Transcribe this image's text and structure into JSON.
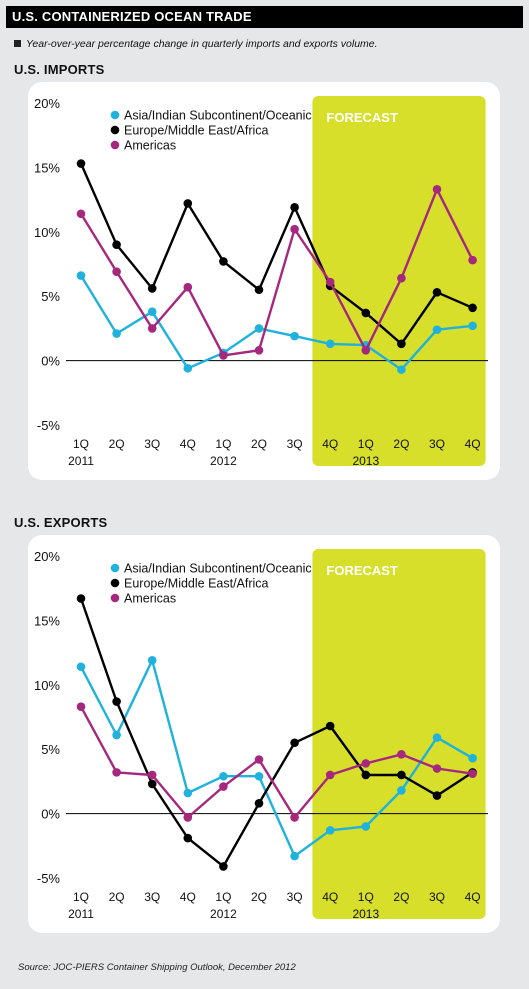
{
  "header": {
    "title": "U.S. CONTAINERIZED OCEAN TRADE",
    "subtitle": "Year-over-year percentage change in quarterly imports and exports volume."
  },
  "source": "Source: JOC-PIERS Container Shipping Outlook, December 2012",
  "colors": {
    "asia": "#1fb2dc",
    "europe": "#000000",
    "americas": "#a5287e",
    "forecast_band": "#d7df2b",
    "forecast_text": "#ffffff"
  },
  "chart_data": [
    {
      "type": "line",
      "title": "U.S. IMPORTS",
      "forecast_label": "FORECAST",
      "forecast_start_index": 7,
      "x_tick_labels": [
        "1Q",
        "2Q",
        "3Q",
        "4Q",
        "1Q",
        "2Q",
        "3Q",
        "4Q",
        "1Q",
        "2Q",
        "3Q",
        "4Q"
      ],
      "x_year_labels": [
        {
          "index": 0,
          "label": "2011"
        },
        {
          "index": 4,
          "label": "2012"
        },
        {
          "index": 8,
          "label": "2013"
        }
      ],
      "y_ticks": [
        20,
        15,
        10,
        5,
        0,
        -5
      ],
      "y_tick_labels": [
        "20%",
        "15%",
        "10%",
        "5%",
        "0%",
        "-5%"
      ],
      "ylim": [
        -5,
        20
      ],
      "legend": "top-left",
      "series": [
        {
          "name": "Asia/Indian Subcontinent/Oceanic",
          "color_key": "asia",
          "values": [
            6.6,
            2.1,
            3.8,
            -0.6,
            0.6,
            2.5,
            1.9,
            1.3,
            1.2,
            -0.7,
            2.4,
            2.7
          ]
        },
        {
          "name": "Europe/Middle East/Africa",
          "color_key": "europe",
          "values": [
            15.3,
            9.0,
            5.6,
            12.2,
            7.7,
            5.5,
            11.9,
            5.8,
            3.7,
            1.3,
            5.3,
            4.1
          ]
        },
        {
          "name": "Americas",
          "color_key": "americas",
          "values": [
            11.4,
            6.9,
            2.5,
            5.7,
            0.4,
            0.8,
            10.2,
            6.1,
            0.8,
            6.4,
            13.3,
            7.8
          ]
        }
      ]
    },
    {
      "type": "line",
      "title": "U.S. EXPORTS",
      "forecast_label": "FORECAST",
      "forecast_start_index": 7,
      "x_tick_labels": [
        "1Q",
        "2Q",
        "3Q",
        "4Q",
        "1Q",
        "2Q",
        "3Q",
        "4Q",
        "1Q",
        "2Q",
        "3Q",
        "4Q"
      ],
      "x_year_labels": [
        {
          "index": 0,
          "label": "2011"
        },
        {
          "index": 4,
          "label": "2012"
        },
        {
          "index": 8,
          "label": "2013"
        }
      ],
      "y_ticks": [
        20,
        15,
        10,
        5,
        0,
        -5
      ],
      "y_tick_labels": [
        "20%",
        "15%",
        "10%",
        "5%",
        "0%",
        "-5%"
      ],
      "ylim": [
        -5,
        20
      ],
      "legend": "top-left",
      "series": [
        {
          "name": "Asia/Indian Subcontinent/Oceanic",
          "color_key": "asia",
          "values": [
            11.4,
            6.1,
            11.9,
            1.6,
            2.9,
            2.9,
            -3.3,
            -1.3,
            -1.0,
            1.8,
            5.9,
            4.3
          ]
        },
        {
          "name": "Europe/Middle East/Africa",
          "color_key": "europe",
          "values": [
            16.7,
            8.7,
            2.3,
            -1.9,
            -4.1,
            0.8,
            5.5,
            6.8,
            3.0,
            3.0,
            1.4,
            3.2
          ]
        },
        {
          "name": "Americas",
          "color_key": "americas",
          "values": [
            8.3,
            3.2,
            3.0,
            -0.3,
            2.1,
            4.2,
            -0.3,
            3.0,
            3.9,
            4.6,
            3.5,
            3.1
          ]
        }
      ]
    }
  ]
}
